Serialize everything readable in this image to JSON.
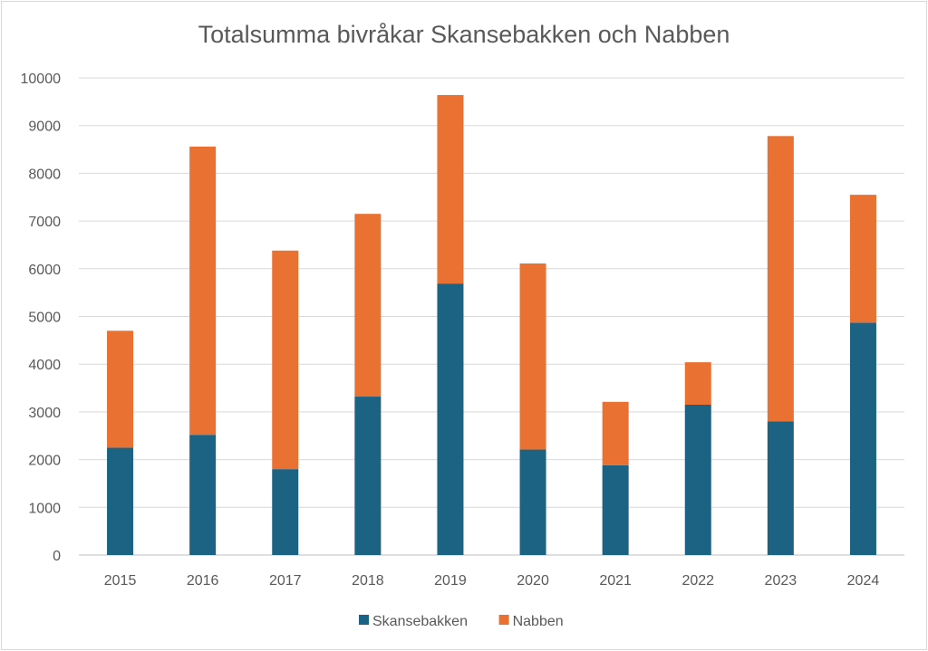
{
  "chart_data": {
    "type": "bar",
    "stacked": true,
    "title": "Totalsumma bivråkar Skansebakken och Nabben",
    "categories": [
      "2015",
      "2016",
      "2017",
      "2018",
      "2019",
      "2020",
      "2021",
      "2022",
      "2023",
      "2024"
    ],
    "series": [
      {
        "name": "Skansebakken",
        "color": "#1b6283",
        "values": [
          2250,
          2520,
          1800,
          3320,
          5690,
          2210,
          1880,
          3150,
          2800,
          4870
        ]
      },
      {
        "name": "Nabben",
        "color": "#e97132",
        "values": [
          2450,
          6040,
          4580,
          3830,
          3950,
          3900,
          1330,
          890,
          5980,
          2680
        ]
      }
    ],
    "ylim": [
      0,
      10000
    ],
    "yticks": [
      "0",
      "1000",
      "2000",
      "3000",
      "4000",
      "5000",
      "6000",
      "7000",
      "8000",
      "9000",
      "10000"
    ],
    "grid": true,
    "legend_position": "bottom"
  }
}
